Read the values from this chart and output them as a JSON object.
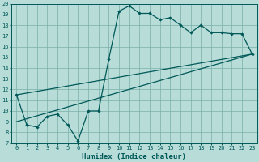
{
  "xlabel": "Humidex (Indice chaleur)",
  "xlim": [
    -0.5,
    23.5
  ],
  "ylim": [
    7,
    20
  ],
  "xticks": [
    0,
    1,
    2,
    3,
    4,
    5,
    6,
    7,
    8,
    9,
    10,
    11,
    12,
    13,
    14,
    15,
    16,
    17,
    18,
    19,
    20,
    21,
    22,
    23
  ],
  "yticks": [
    7,
    8,
    9,
    10,
    11,
    12,
    13,
    14,
    15,
    16,
    17,
    18,
    19,
    20
  ],
  "bg_color": "#b8ddd8",
  "grid_color": "#78b0a8",
  "line_color": "#005858",
  "series1_x": [
    0,
    1,
    2,
    3,
    4,
    5,
    6,
    7,
    8,
    9,
    10,
    11,
    12,
    13,
    14,
    15,
    16,
    17,
    18,
    19,
    20,
    21,
    22,
    23
  ],
  "series1_y": [
    11.5,
    8.7,
    8.5,
    9.5,
    9.7,
    8.7,
    7.2,
    10.0,
    10.0,
    14.8,
    19.3,
    19.8,
    19.1,
    19.1,
    18.5,
    18.7,
    18.0,
    17.3,
    18.0,
    17.3,
    17.3,
    17.2,
    17.2,
    15.3
  ],
  "series2_x": [
    0,
    23
  ],
  "series2_y": [
    11.5,
    15.3
  ],
  "series3_x": [
    0,
    23
  ],
  "series3_y": [
    9.0,
    15.3
  ],
  "xlabel_fontsize": 6.5,
  "tick_fontsize": 5.0,
  "linewidth": 0.9,
  "markersize": 2.2
}
